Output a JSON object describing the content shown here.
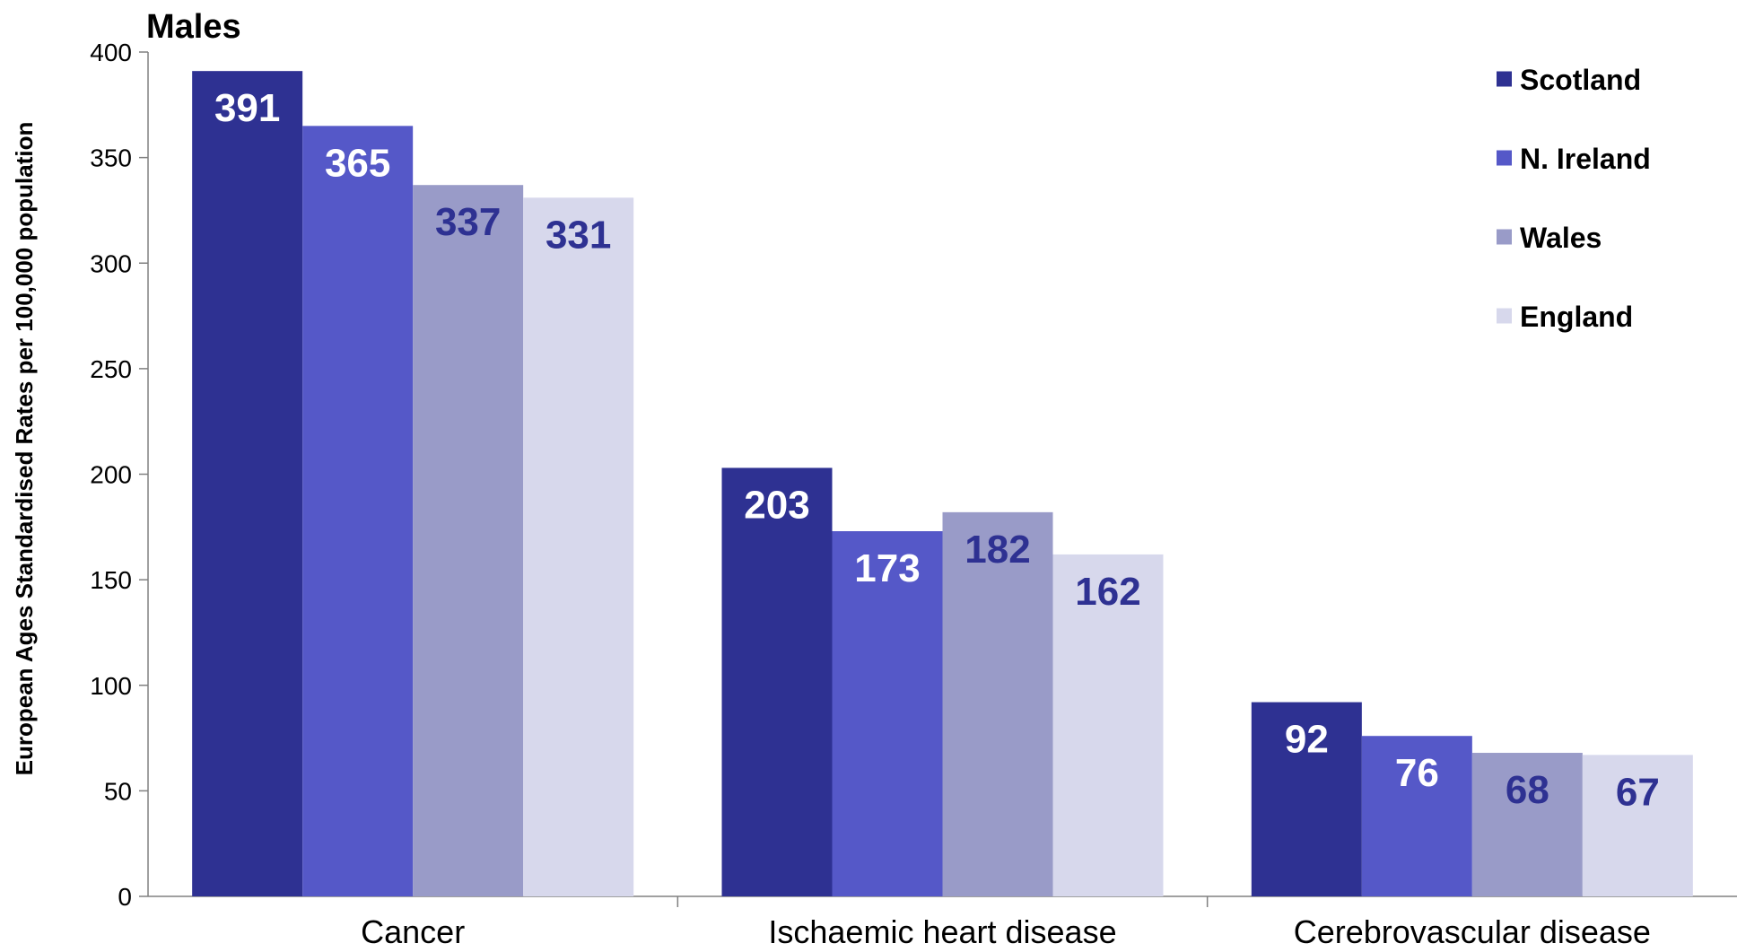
{
  "chart_data": {
    "type": "bar",
    "title": "Males",
    "xlabel": "",
    "ylabel": "European Ages Standardised Rates per 100,000 population",
    "ylim": [
      0,
      400
    ],
    "yticks": [
      0,
      50,
      100,
      150,
      200,
      250,
      300,
      350,
      400
    ],
    "categories": [
      "Cancer",
      "Ischaemic heart disease",
      "Cerebrovascular disease"
    ],
    "series": [
      {
        "name": "Scotland",
        "color": "#2e3192",
        "label_color": "#ffffff",
        "values": [
          391,
          203,
          92
        ]
      },
      {
        "name": "N. Ireland",
        "color": "#5558c8",
        "label_color": "#ffffff",
        "values": [
          365,
          173,
          76
        ]
      },
      {
        "name": "Wales",
        "color": "#999bc8",
        "label_color": "#2e3192",
        "values": [
          337,
          182,
          68
        ]
      },
      {
        "name": "England",
        "color": "#d7d8ec",
        "label_color": "#2e3192",
        "values": [
          331,
          162,
          67
        ]
      }
    ],
    "grid": false,
    "legend_position": "top-right"
  }
}
